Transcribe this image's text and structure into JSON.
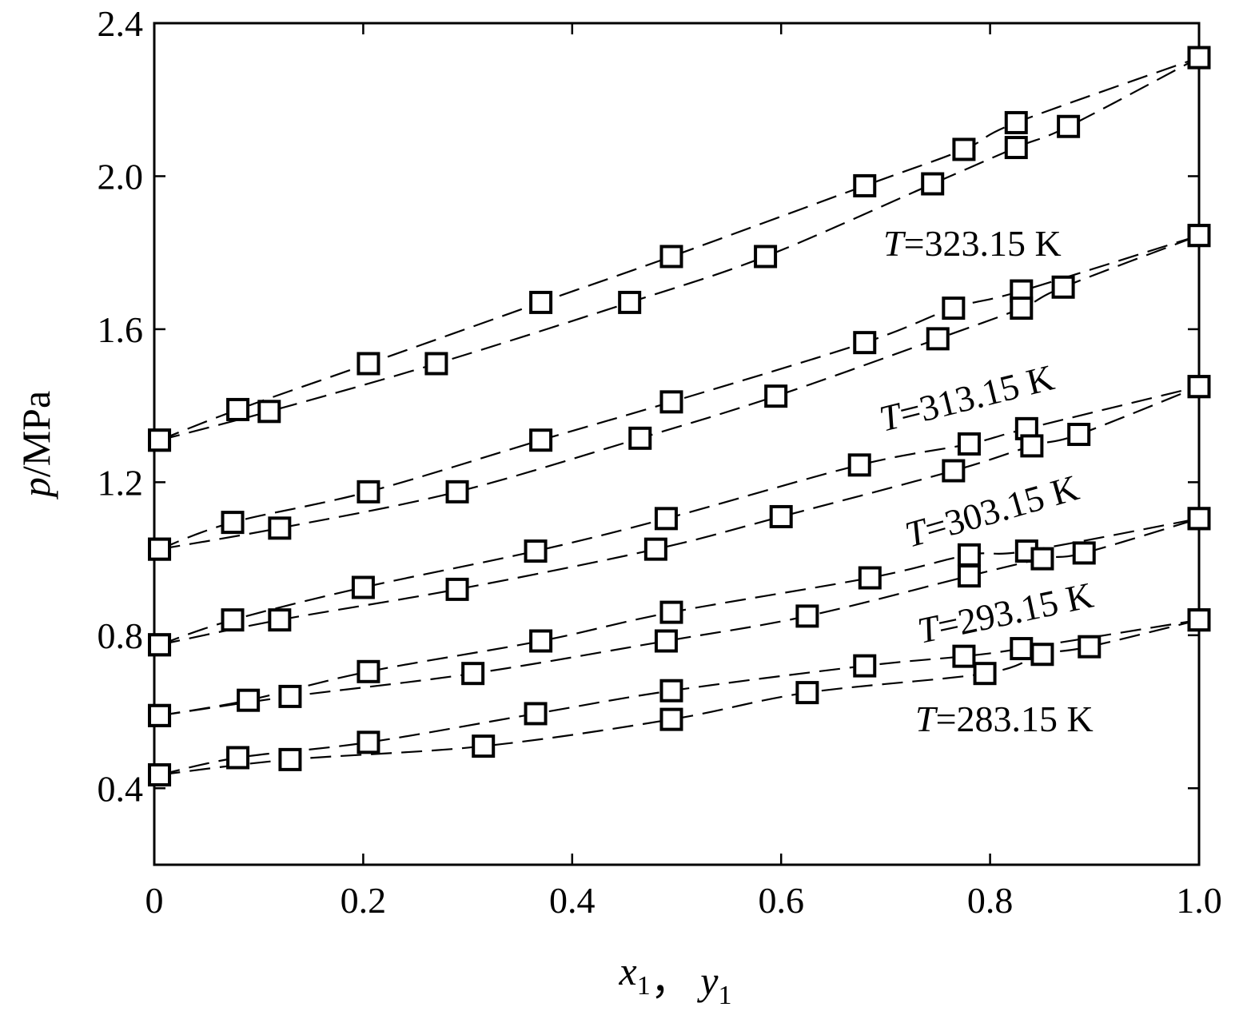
{
  "chart_data": {
    "type": "scatter",
    "title": "",
    "xlabel": {
      "var1": "x",
      "sub1": "1",
      "sep": "，",
      "var2": "y",
      "sub2": "1"
    },
    "ylabel": {
      "var": "p",
      "unit": "/MPa"
    },
    "xlim": [
      0,
      1.0
    ],
    "ylim": [
      0.2,
      2.4
    ],
    "xticks": [
      "0",
      "0.2",
      "0.4",
      "0.6",
      "0.8",
      "1.0"
    ],
    "yticks": [
      "0.4",
      "0.8",
      "1.2",
      "1.6",
      "2.0",
      "2.4"
    ],
    "xtick_values": [
      0,
      0.2,
      0.4,
      0.6,
      0.8,
      1.0
    ],
    "ytick_values": [
      0.4,
      0.8,
      1.2,
      1.6,
      2.0,
      2.4
    ],
    "grid": false,
    "marker": "open-square",
    "series": [
      {
        "name": "T=323.15 K",
        "label_var": "T",
        "label_rest": "=323.15 K",
        "bubble": {
          "x": [
            0.005,
            0.08,
            0.205,
            0.37,
            0.495,
            0.68,
            0.775,
            0.825,
            1.0
          ],
          "p": [
            1.31,
            1.39,
            1.51,
            1.67,
            1.79,
            1.975,
            2.07,
            2.14,
            2.31
          ]
        },
        "dew": {
          "y": [
            0.005,
            0.11,
            0.27,
            0.455,
            0.585,
            0.745,
            0.825,
            0.875,
            1.0
          ],
          "p": [
            1.31,
            1.385,
            1.51,
            1.67,
            1.79,
            1.98,
            2.075,
            2.13,
            2.31
          ]
        }
      },
      {
        "name": "T=313.15 K",
        "label_var": "T",
        "label_rest": "=313.15 K",
        "bubble": {
          "x": [
            0.005,
            0.075,
            0.205,
            0.37,
            0.495,
            0.68,
            0.765,
            0.83,
            1.0
          ],
          "p": [
            1.025,
            1.095,
            1.175,
            1.31,
            1.41,
            1.565,
            1.655,
            1.7,
            1.845
          ]
        },
        "dew": {
          "y": [
            0.005,
            0.12,
            0.29,
            0.465,
            0.595,
            0.75,
            0.83,
            0.87,
            1.0
          ],
          "p": [
            1.025,
            1.08,
            1.175,
            1.315,
            1.425,
            1.575,
            1.655,
            1.71,
            1.845
          ]
        }
      },
      {
        "name": "T=303.15 K",
        "label_var": "T",
        "label_rest": "=303.15 K",
        "bubble": {
          "x": [
            0.005,
            0.075,
            0.2,
            0.365,
            0.49,
            0.675,
            0.78,
            0.835,
            1.0
          ],
          "p": [
            0.775,
            0.84,
            0.925,
            1.02,
            1.105,
            1.245,
            1.3,
            1.34,
            1.45
          ]
        },
        "dew": {
          "y": [
            0.005,
            0.12,
            0.29,
            0.48,
            0.6,
            0.765,
            0.84,
            0.885,
            1.0
          ],
          "p": [
            0.775,
            0.84,
            0.92,
            1.025,
            1.11,
            1.23,
            1.295,
            1.325,
            1.45
          ]
        }
      },
      {
        "name": "T=293.15 K",
        "label_var": "T",
        "label_rest": "=293.15 K",
        "bubble": {
          "x": [
            0.005,
            0.09,
            0.205,
            0.37,
            0.495,
            0.685,
            0.78,
            0.835,
            1.0
          ],
          "p": [
            0.59,
            0.63,
            0.705,
            0.785,
            0.86,
            0.95,
            1.01,
            1.02,
            1.105
          ]
        },
        "dew": {
          "y": [
            0.005,
            0.13,
            0.305,
            0.49,
            0.625,
            0.78,
            0.85,
            0.89,
            1.0
          ],
          "p": [
            0.59,
            0.64,
            0.7,
            0.785,
            0.85,
            0.955,
            1.0,
            1.015,
            1.105
          ]
        }
      },
      {
        "name": "T=283.15 K",
        "label_var": "T",
        "label_rest": "=283.15 K",
        "bubble": {
          "x": [
            0.005,
            0.08,
            0.205,
            0.365,
            0.495,
            0.68,
            0.775,
            0.83,
            1.0
          ],
          "p": [
            0.435,
            0.48,
            0.52,
            0.595,
            0.655,
            0.72,
            0.745,
            0.765,
            0.84
          ]
        },
        "dew": {
          "y": [
            0.005,
            0.13,
            0.315,
            0.495,
            0.625,
            0.795,
            0.85,
            0.895,
            1.0
          ],
          "p": [
            0.435,
            0.475,
            0.51,
            0.58,
            0.65,
            0.7,
            0.75,
            0.77,
            0.84
          ]
        }
      }
    ]
  }
}
